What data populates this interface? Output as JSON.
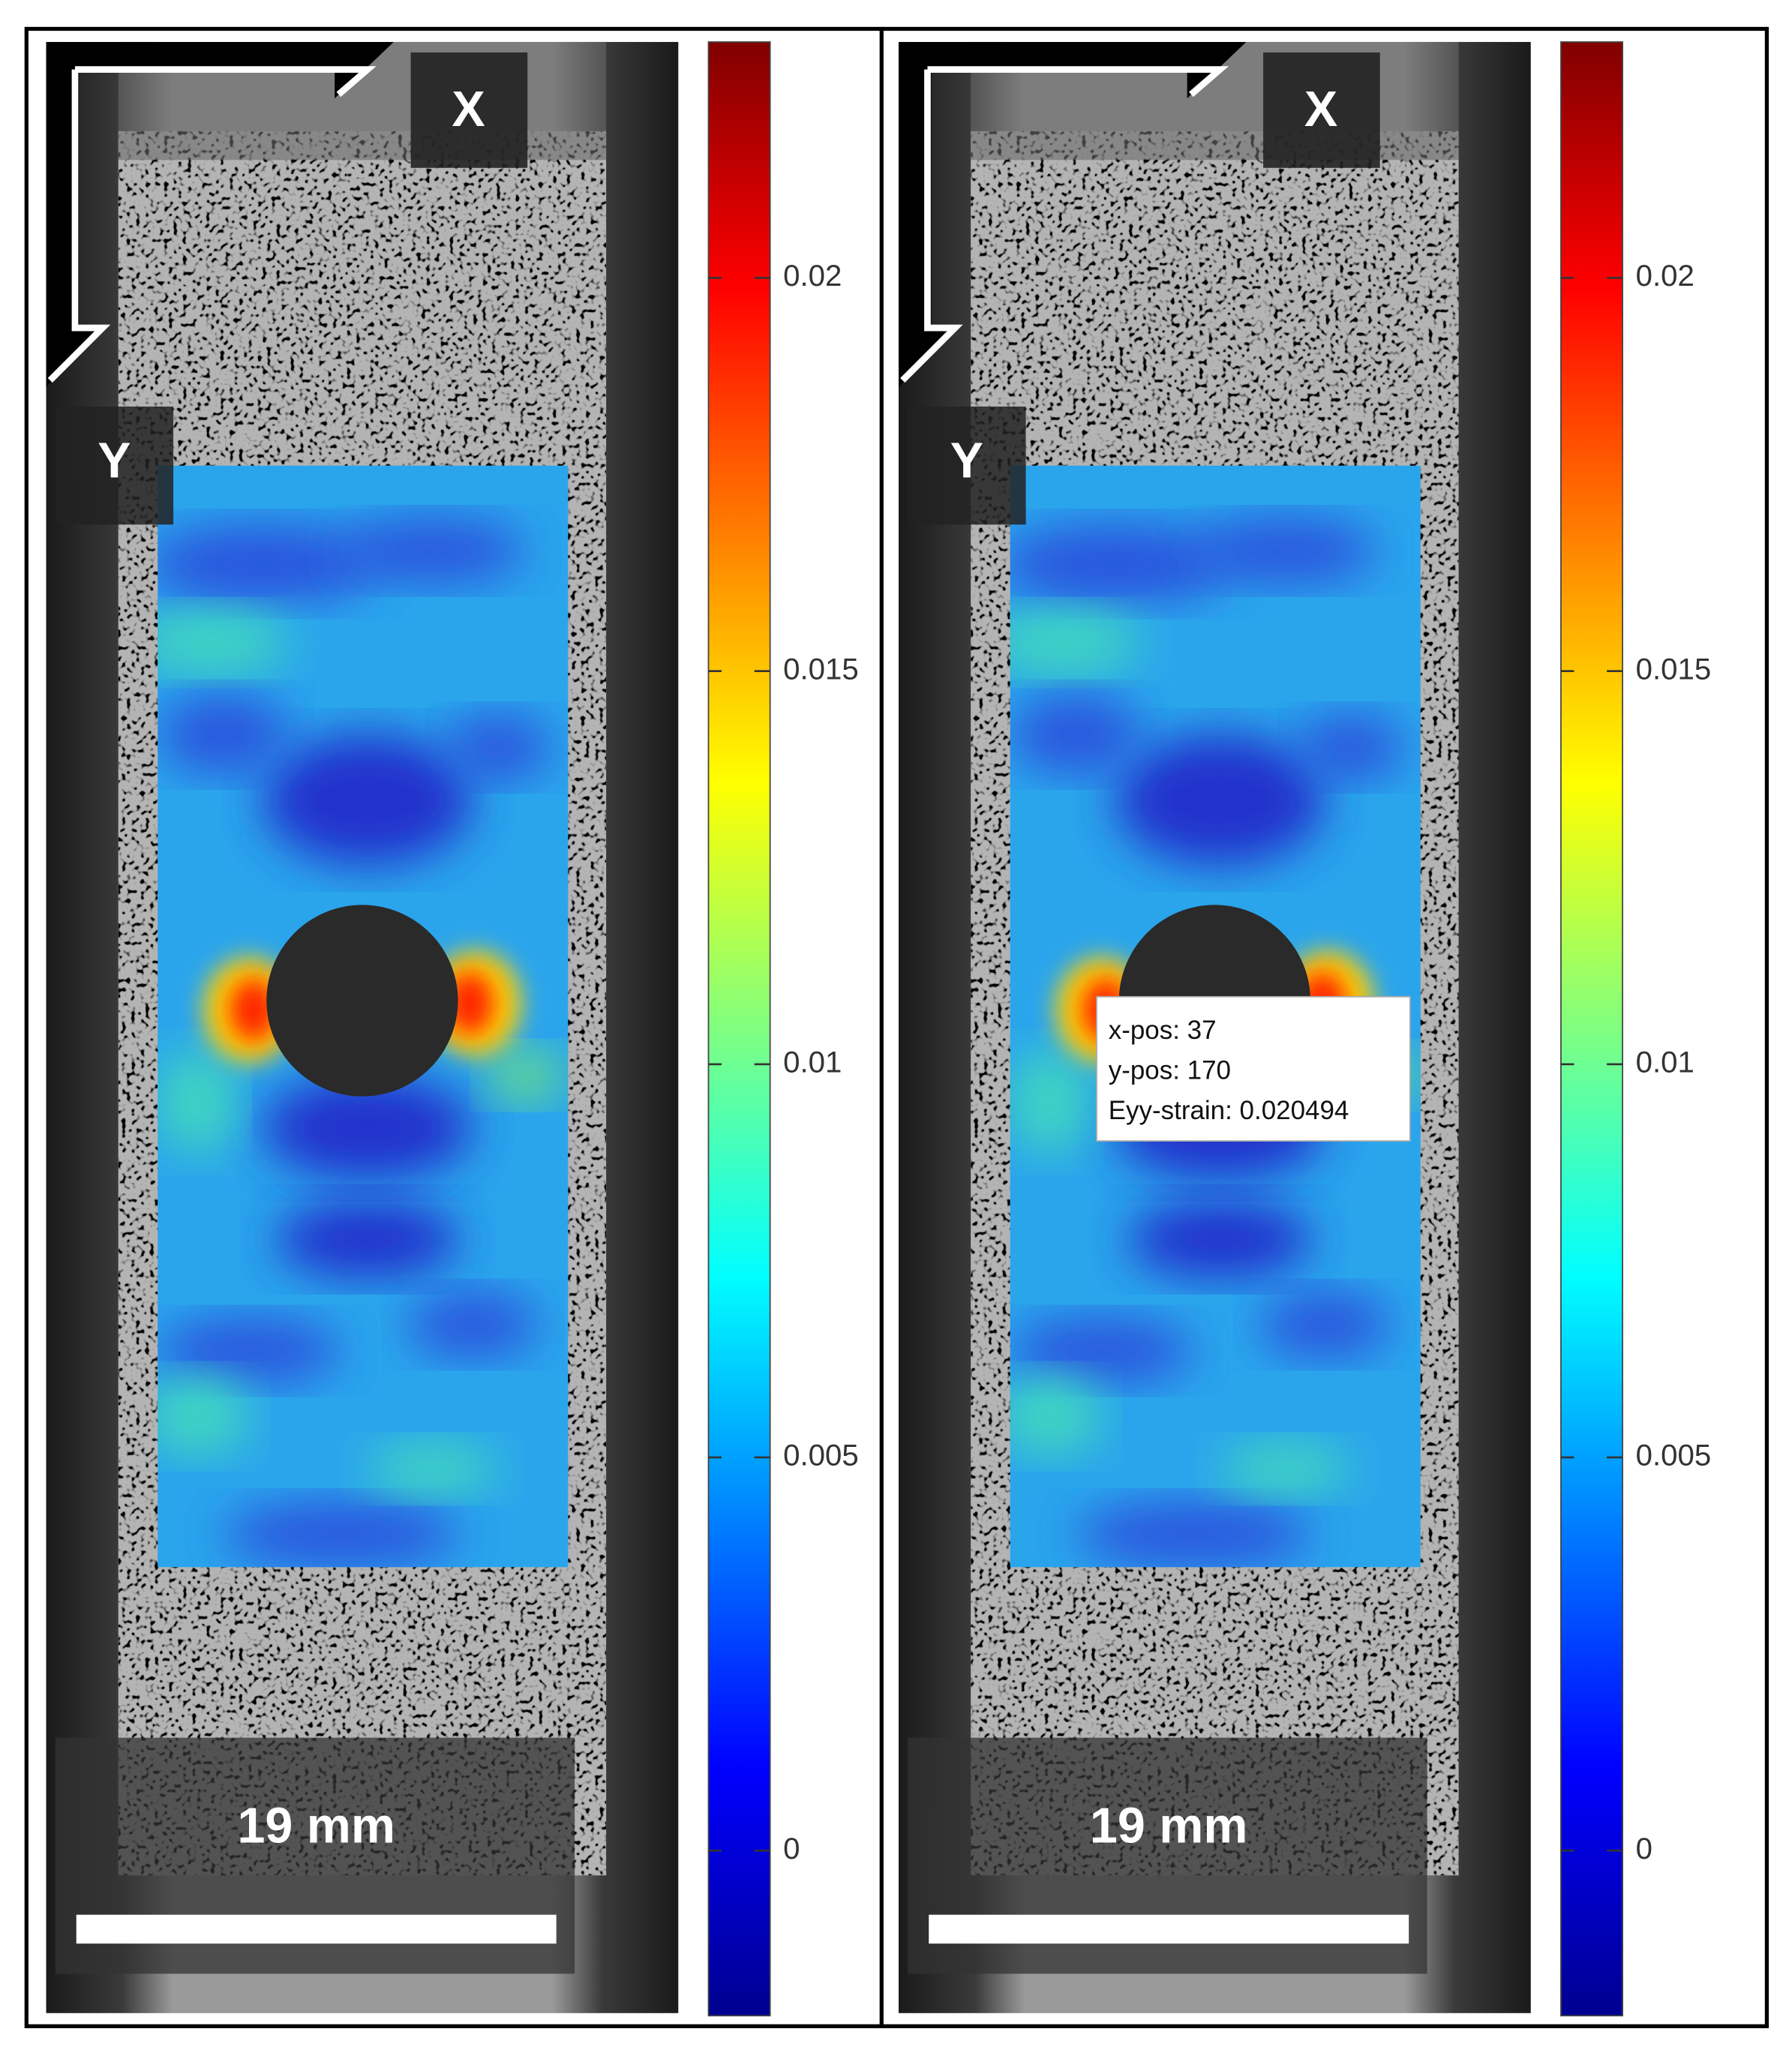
{
  "panels": [
    {
      "x_axis_label": "X",
      "y_axis_label": "Y",
      "scale_bar": "19 mm",
      "colorbar": {
        "lim": [
          -0.0021,
          0.023
        ],
        "ticks": [
          0,
          0.005,
          0.01,
          0.015,
          0.02
        ]
      }
    },
    {
      "x_axis_label": "X",
      "y_axis_label": "Y",
      "scale_bar": "19 mm",
      "colorbar": {
        "lim": [
          -0.0021,
          0.023
        ],
        "ticks": [
          0,
          0.005,
          0.01,
          0.015,
          0.02
        ]
      },
      "tooltip": [
        "x-pos: 37",
        "y-pos: 170",
        "Eyy-strain: 0.020494"
      ]
    }
  ]
}
